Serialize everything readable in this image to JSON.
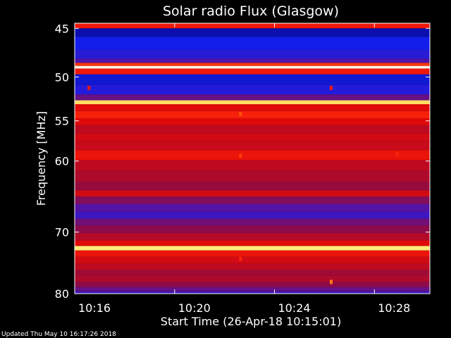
{
  "chart_data": {
    "type": "heatmap",
    "title": "Solar radio Flux (Glasgow)",
    "xlabel": "Start Time (26-Apr-18 10:15:01)",
    "ylabel": "Frequency [MHz]",
    "x_unit": "minutes since start",
    "xlim": [
      0.98,
      15.2
    ],
    "ylim": [
      44.5,
      80
    ],
    "y_scale": "log",
    "x_ticks": [
      {
        "minute": 0.98,
        "label": "10:16"
      },
      {
        "minute": 4.98,
        "label": "10:20"
      },
      {
        "minute": 8.98,
        "label": "10:24"
      },
      {
        "minute": 12.98,
        "label": "10:28"
      }
    ],
    "y_ticks": [
      45,
      50,
      55,
      60,
      70,
      80
    ],
    "grid": false,
    "colormap": "blue-purple-red-yellow-white",
    "horizontal_bands_mhz": [
      {
        "f": 44.8,
        "level": 0.62
      },
      {
        "f": 45.2,
        "level": 0.05
      },
      {
        "f": 46.5,
        "level": 0.1
      },
      {
        "f": 47.8,
        "level": 0.15
      },
      {
        "f": 48.3,
        "level": 0.25
      },
      {
        "f": 48.7,
        "level": 0.72
      },
      {
        "f": 48.95,
        "level": 1.0
      },
      {
        "f": 49.25,
        "level": 0.62
      },
      {
        "f": 50.2,
        "level": 0.08
      },
      {
        "f": 51.5,
        "level": 0.14
      },
      {
        "f": 52.4,
        "level": 0.3
      },
      {
        "f": 52.8,
        "level": 0.93
      },
      {
        "f": 53.3,
        "level": 0.55
      },
      {
        "f": 54.4,
        "level": 0.66
      },
      {
        "f": 55.0,
        "level": 0.55
      },
      {
        "f": 56.0,
        "level": 0.48
      },
      {
        "f": 57.0,
        "level": 0.52
      },
      {
        "f": 58.0,
        "level": 0.5
      },
      {
        "f": 59.2,
        "level": 0.6
      },
      {
        "f": 60.5,
        "level": 0.48
      },
      {
        "f": 62.0,
        "level": 0.45
      },
      {
        "f": 63.5,
        "level": 0.4
      },
      {
        "f": 64.4,
        "level": 0.52
      },
      {
        "f": 65.2,
        "level": 0.36
      },
      {
        "f": 66.5,
        "level": 0.26
      },
      {
        "f": 67.5,
        "level": 0.2
      },
      {
        "f": 68.5,
        "level": 0.32
      },
      {
        "f": 69.5,
        "level": 0.38
      },
      {
        "f": 70.8,
        "level": 0.46
      },
      {
        "f": 71.8,
        "level": 0.55
      },
      {
        "f": 72.5,
        "level": 0.95
      },
      {
        "f": 73.2,
        "level": 0.6
      },
      {
        "f": 74.5,
        "level": 0.52
      },
      {
        "f": 75.5,
        "level": 0.48
      },
      {
        "f": 76.5,
        "level": 0.42
      },
      {
        "f": 77.5,
        "level": 0.45
      },
      {
        "f": 78.5,
        "level": 0.38
      },
      {
        "f": 79.3,
        "level": 0.3
      },
      {
        "f": 79.9,
        "level": 0.2
      }
    ],
    "spots": [
      {
        "minute": 1.55,
        "f": 51.2,
        "level": 0.62
      },
      {
        "minute": 11.25,
        "f": 51.2,
        "level": 0.62
      },
      {
        "minute": 7.62,
        "f": 54.2,
        "level": 0.75
      },
      {
        "minute": 7.62,
        "f": 59.3,
        "level": 0.72
      },
      {
        "minute": 13.9,
        "f": 59.1,
        "level": 0.68
      },
      {
        "minute": 7.62,
        "f": 74.2,
        "level": 0.68
      },
      {
        "minute": 11.25,
        "f": 78.0,
        "level": 0.8
      }
    ]
  },
  "footer": "Updated Thu May 10 16:17:26 2018"
}
